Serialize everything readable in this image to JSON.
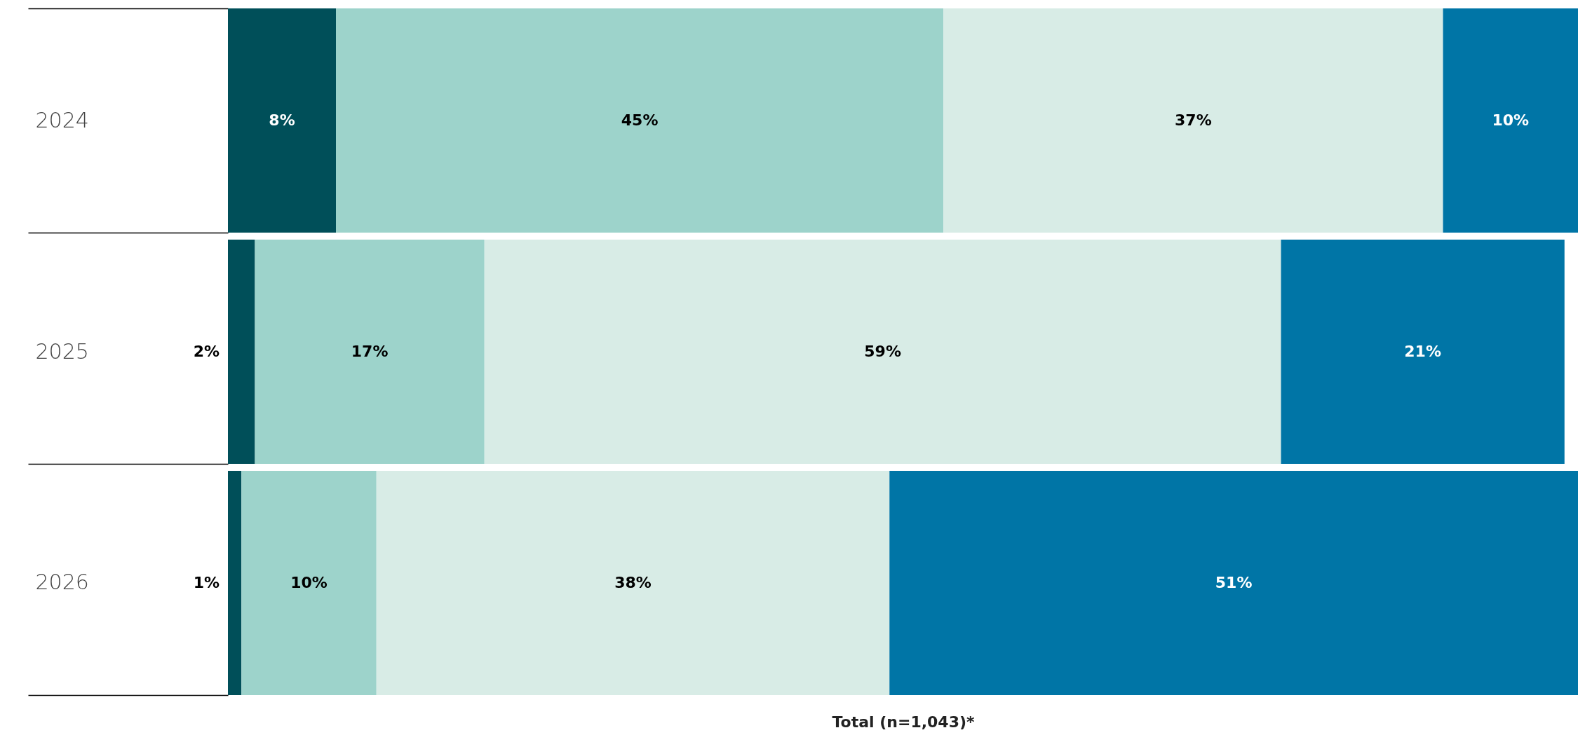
{
  "chart_data": {
    "type": "bar",
    "orientation": "horizontal",
    "stacked": true,
    "xlabel": "Total (n=1,043)*",
    "categories": [
      "2024",
      "2025",
      "2026"
    ],
    "series": [
      {
        "color": "#004f59",
        "values": [
          8,
          2,
          1
        ],
        "value_labels": [
          "8%",
          "2%",
          "1%"
        ]
      },
      {
        "color": "#9dd3cb",
        "values": [
          45,
          17,
          10
        ],
        "value_labels": [
          "45%",
          "17%",
          "10%"
        ]
      },
      {
        "color": "#d8ece6",
        "values": [
          37,
          59,
          38
        ],
        "value_labels": [
          "37%",
          "59%",
          "38%"
        ]
      },
      {
        "color": "#0075a6",
        "values": [
          10,
          21,
          51
        ],
        "value_labels": [
          "10%",
          "21%",
          "51%"
        ]
      }
    ]
  }
}
